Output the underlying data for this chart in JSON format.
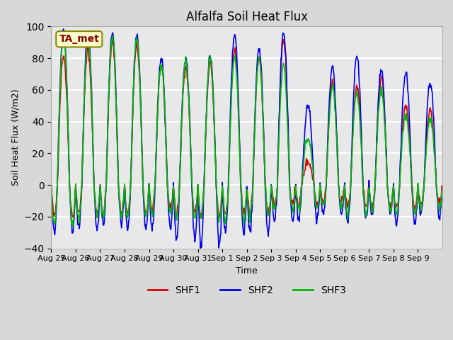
{
  "title": "Alfalfa Soil Heat Flux",
  "ylabel": "Soil Heat Flux (W/m2)",
  "xlabel": "Time",
  "ylim": [
    -40,
    100
  ],
  "annotation": "TA_met",
  "colors": {
    "SHF1": "#dd0000",
    "SHF2": "#0000ee",
    "SHF3": "#00bb00"
  },
  "fig_facecolor": "#d8d8d8",
  "ax_facecolor": "#e8e8e8",
  "xtick_labels": [
    "Aug 25",
    "Aug 26",
    "Aug 27",
    "Aug 28",
    "Aug 29",
    "Aug 30",
    "Aug 31",
    "Sep 1",
    "Sep 2",
    "Sep 3",
    "Sep 4",
    "Sep 5",
    "Sep 6",
    "Sep 7",
    "Sep 8",
    "Sep 9"
  ],
  "ytick_values": [
    -40,
    -20,
    0,
    20,
    40,
    60,
    80,
    100
  ],
  "grid_color": "#ffffff",
  "legend_entries": [
    "SHF1",
    "SHF2",
    "SHF3"
  ],
  "amp_shf1": [
    82,
    85,
    90,
    88,
    76,
    75,
    76,
    85,
    80,
    92,
    15,
    65,
    62,
    68,
    50,
    48
  ],
  "amp_shf2": [
    98,
    97,
    95,
    95,
    80,
    80,
    81,
    95,
    87,
    96,
    50,
    75,
    82,
    72,
    71,
    65
  ],
  "amp_shf3": [
    95,
    93,
    93,
    92,
    76,
    78,
    80,
    80,
    80,
    75,
    30,
    62,
    58,
    60,
    44,
    42
  ],
  "night_shf1": [
    -20,
    -18,
    -18,
    -18,
    -15,
    -18,
    -20,
    -18,
    -18,
    -12,
    -12,
    -10,
    -14,
    -14,
    -15,
    -12
  ],
  "night_shf2": [
    -30,
    -28,
    -25,
    -28,
    -28,
    -35,
    -38,
    -30,
    -30,
    -22,
    -22,
    -18,
    -22,
    -18,
    -25,
    -20
  ],
  "night_shf3": [
    -25,
    -20,
    -20,
    -20,
    -18,
    -20,
    -22,
    -22,
    -20,
    -15,
    -15,
    -14,
    -18,
    -16,
    -18,
    -15
  ],
  "n_days": 16,
  "pts_per_day": 48
}
